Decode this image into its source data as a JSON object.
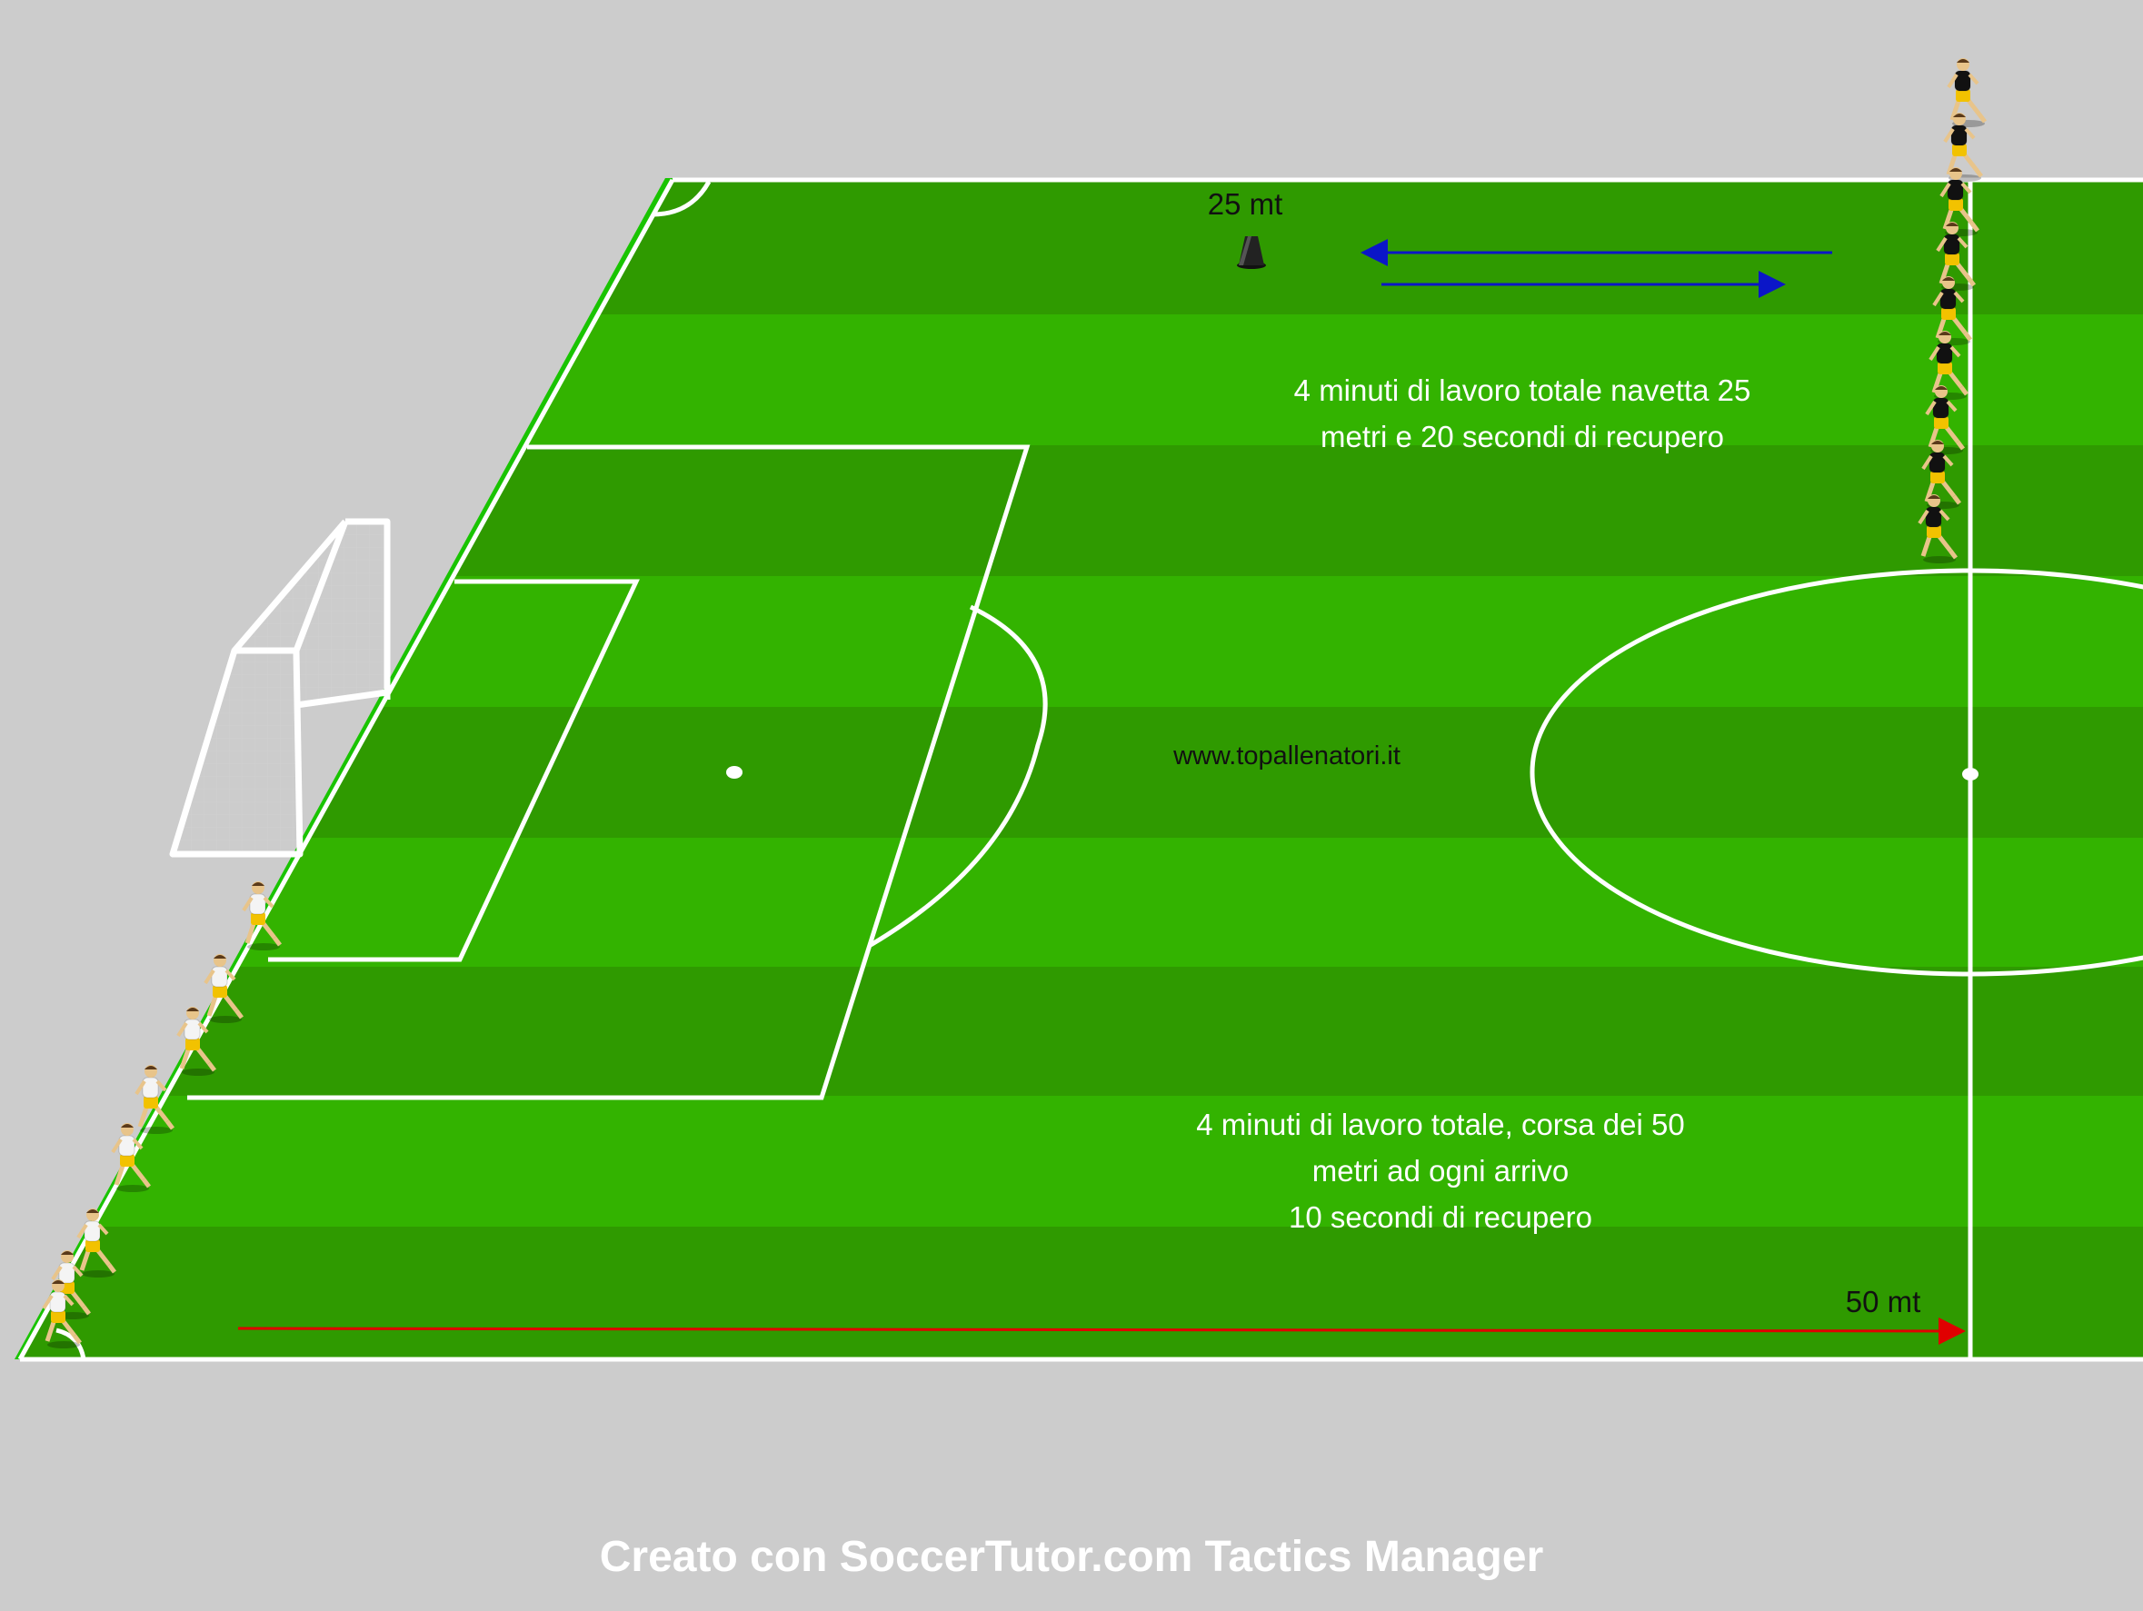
{
  "labels": {
    "cone_distance": "25 mt",
    "run_distance": "50 mt",
    "shuttle_line1": "4 minuti di lavoro totale navetta 25",
    "shuttle_line2": "metri e 20 secondi di recupero",
    "run_line1": "4 minuti di lavoro totale,  corsa dei 50",
    "run_line2": "metri ad ogni arrivo",
    "run_line3": "10 secondi di recupero",
    "website": "www.topallenatori.it"
  },
  "footer": "Creato con SoccerTutor.com Tactics Manager",
  "colors": {
    "background": "#cccccc",
    "pitch_dark": "#2f9a00",
    "pitch_light": "#33b300",
    "line": "#ffffff",
    "shuttle_arrow": "#0b16c8",
    "run_arrow": "#e00000",
    "cone": "#222222",
    "team_a_shirt": "#111111",
    "team_b_shirt": "#f4f4f4",
    "shorts": "#f2c200"
  },
  "players": {
    "shuttle_group": {
      "count": 9,
      "shirt": "team_a_shirt"
    },
    "sprint_group": {
      "count": 8,
      "shirt": "team_b_shirt"
    }
  }
}
